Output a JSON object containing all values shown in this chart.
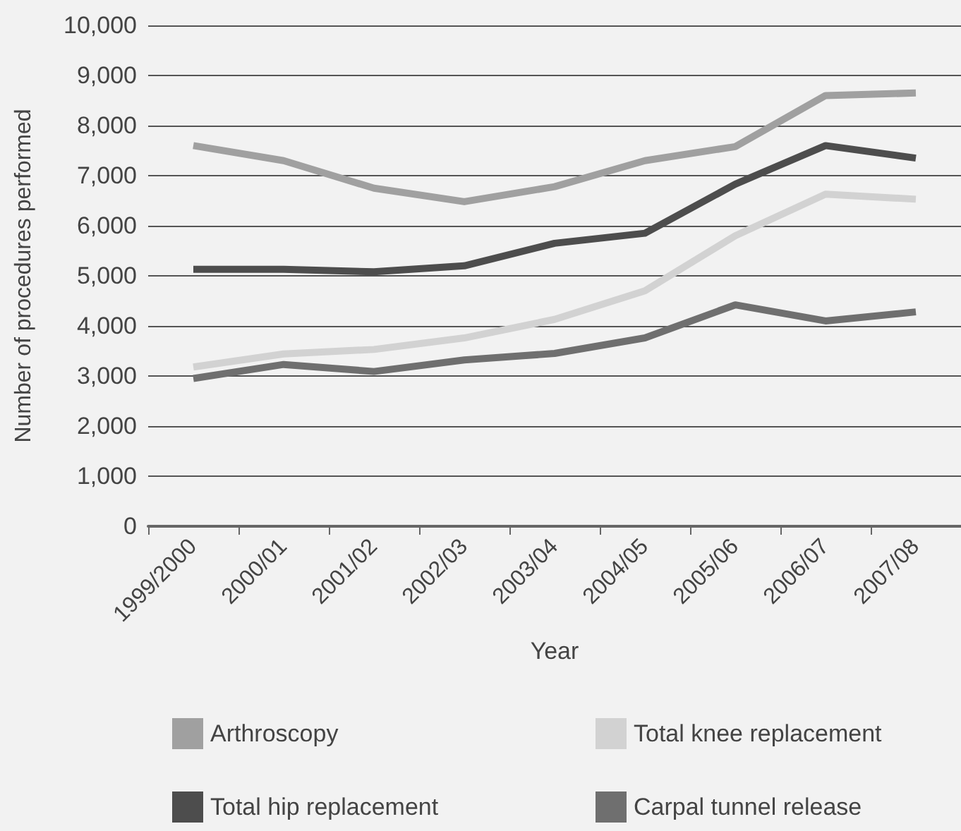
{
  "chart_data": {
    "type": "line",
    "xlabel": "Year",
    "ylabel": "Number of procedures performed",
    "categories": [
      "1999/2000",
      "2000/01",
      "2001/02",
      "2002/03",
      "2003/04",
      "2004/05",
      "2005/06",
      "2006/07",
      "2007/08"
    ],
    "series": [
      {
        "name": "Arthroscopy",
        "color": "#a0a0a0",
        "values": [
          7600,
          7300,
          6750,
          6480,
          6780,
          7300,
          7580,
          8600,
          8650
        ]
      },
      {
        "name": "Total knee replacement",
        "color": "#d2d2d2",
        "values": [
          3180,
          3440,
          3530,
          3760,
          4130,
          4700,
          5800,
          6630,
          6530
        ]
      },
      {
        "name": "Total hip replacement",
        "color": "#4d4d4d",
        "values": [
          5130,
          5130,
          5080,
          5200,
          5650,
          5850,
          6830,
          7600,
          7350
        ]
      },
      {
        "name": "Carpal tunnel release",
        "color": "#6f6f6f",
        "values": [
          2950,
          3230,
          3090,
          3320,
          3450,
          3760,
          4420,
          4100,
          4280
        ]
      }
    ],
    "ylim": [
      0,
      10000
    ],
    "yticks": [
      0,
      {
        "value": 1000,
        "label": "1,000"
      },
      {
        "value": 2000,
        "label": "2,000"
      },
      {
        "value": 3000,
        "label": "3,000"
      },
      {
        "value": 4000,
        "label": "4,000"
      },
      {
        "value": 5000,
        "label": "5,000"
      },
      {
        "value": 6000,
        "label": "6,000"
      },
      {
        "value": 7000,
        "label": "7,000"
      },
      {
        "value": 8000,
        "label": "8,000"
      },
      {
        "value": 9000,
        "label": "9,000"
      },
      {
        "value": 10000,
        "label": "10,000"
      }
    ],
    "grid": "y",
    "legend": "bottom",
    "marker": "none",
    "line_style": "solid"
  }
}
